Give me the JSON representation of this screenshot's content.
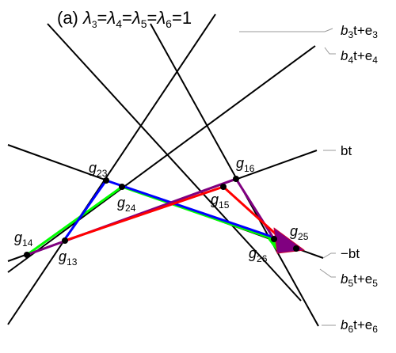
{
  "title": {
    "prefix": "(a) ",
    "parts": [
      {
        "sym": "λ",
        "sub": "3",
        "op": "="
      },
      {
        "sym": "λ",
        "sub": "4",
        "op": "="
      },
      {
        "sym": "λ",
        "sub": "5",
        "op": "="
      },
      {
        "sym": "λ",
        "sub": "6",
        "op": "=1"
      }
    ]
  },
  "line_labels": {
    "b3": {
      "base": "b",
      "sub": "3",
      "rest": "t+e",
      "sub2": "3"
    },
    "b4": {
      "base": "b",
      "sub": "4",
      "rest": "t+e",
      "sub2": "4"
    },
    "bt": {
      "text": "bt"
    },
    "neg_bt": {
      "text": "−bt"
    },
    "b5": {
      "base": "b",
      "sub": "5",
      "rest": "t+e",
      "sub2": "5"
    },
    "b6": {
      "base": "b",
      "sub": "6",
      "rest": "t+e",
      "sub2": "6"
    }
  },
  "points": {
    "g23": {
      "base": "g",
      "sub": "23"
    },
    "g24": {
      "base": "g",
      "sub": "24"
    },
    "g16": {
      "base": "g",
      "sub": "16"
    },
    "g15": {
      "base": "g",
      "sub": "15"
    },
    "g14": {
      "base": "g",
      "sub": "14"
    },
    "g13": {
      "base": "g",
      "sub": "13"
    },
    "g25": {
      "base": "g",
      "sub": "25"
    },
    "g26": {
      "base": "g",
      "sub": "26"
    }
  },
  "colors": {
    "line": "#000000",
    "leader": "#999999",
    "blue": "#0000ff",
    "green": "#00ff00",
    "red": "#ff0000",
    "purple": "#800080",
    "dot": "#000000"
  }
}
